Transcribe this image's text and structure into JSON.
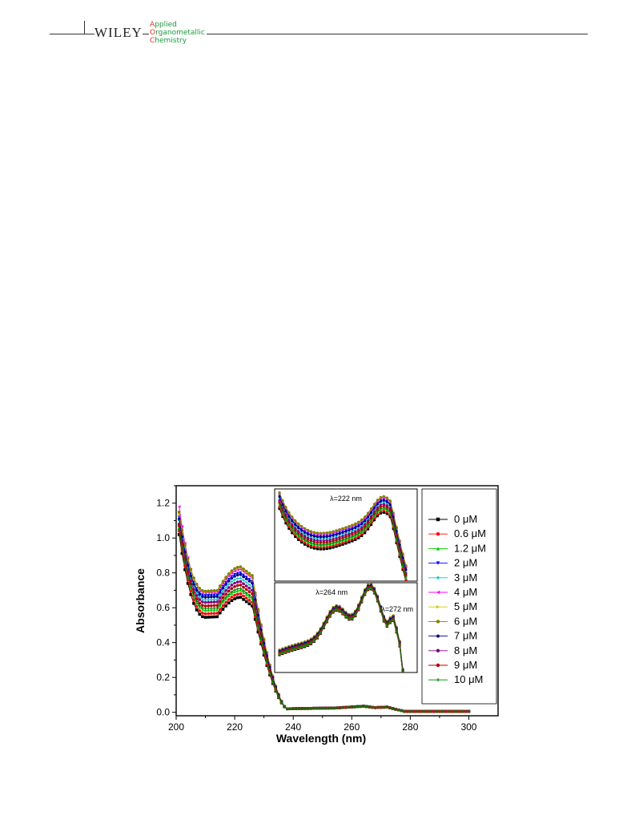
{
  "header": {
    "publisher": "WILEY",
    "journal_lines": [
      {
        "cap": "A",
        "rest": "pplied"
      },
      {
        "cap": "O",
        "rest": "rganometallic"
      },
      {
        "cap": "C",
        "rest": "hemistry"
      }
    ]
  },
  "colors": {
    "journal_green": "#1a9a3a",
    "journal_red": "#e03a2a"
  },
  "chart_data": {
    "type": "line",
    "title": "",
    "xlabel": "Wavelength (nm)",
    "ylabel": "Absorbance",
    "xlim": [
      200,
      310
    ],
    "ylim": [
      -0.02,
      1.3
    ],
    "xticks": [
      200,
      220,
      240,
      260,
      280,
      300
    ],
    "yticks": [
      0.0,
      0.2,
      0.4,
      0.6,
      0.8,
      1.0,
      1.2
    ],
    "x": [
      201,
      202,
      203,
      205,
      208,
      211,
      214,
      217,
      220,
      222,
      224,
      226,
      228,
      230,
      232,
      234,
      236,
      238,
      240,
      250,
      260,
      264,
      268,
      272,
      276,
      280,
      290,
      300
    ],
    "legend_position": "right",
    "series": [
      {
        "name": "0 μM",
        "color": "#000000",
        "marker": "square",
        "peak": 0.66,
        "trough": 0.545,
        "start": 1.02
      },
      {
        "name": "0.6 μM",
        "color": "#ff0000",
        "marker": "circle",
        "peak": 0.68,
        "trough": 0.565,
        "start": 1.04
      },
      {
        "name": "1.2 μM",
        "color": "#00cc00",
        "marker": "triangle-up",
        "peak": 0.7,
        "trough": 0.585,
        "start": 1.06
      },
      {
        "name": "2 μM",
        "color": "#0000ff",
        "marker": "triangle-down",
        "peak": 0.8,
        "trough": 0.67,
        "start": 1.12
      },
      {
        "name": "3 μM",
        "color": "#00cccc",
        "marker": "diamond",
        "peak": 0.77,
        "trough": 0.645,
        "start": 1.1
      },
      {
        "name": "4 μM",
        "color": "#ff00ff",
        "marker": "triangle-left",
        "peak": 0.82,
        "trough": 0.685,
        "start": 1.18
      },
      {
        "name": "5 μM",
        "color": "#cccc00",
        "marker": "triangle-right",
        "peak": 0.83,
        "trough": 0.69,
        "start": 1.14
      },
      {
        "name": "6 μM",
        "color": "#808000",
        "marker": "hexagon",
        "peak": 0.835,
        "trough": 0.695,
        "start": 1.15
      },
      {
        "name": "7 μM",
        "color": "#000080",
        "marker": "star",
        "peak": 0.79,
        "trough": 0.66,
        "start": 1.11
      },
      {
        "name": "8 μM",
        "color": "#800080",
        "marker": "pentagon",
        "peak": 0.75,
        "trough": 0.63,
        "start": 1.08
      },
      {
        "name": "9 μM",
        "color": "#b00000",
        "marker": "circle",
        "peak": 0.73,
        "trough": 0.61,
        "start": 1.07
      },
      {
        "name": "10 μM",
        "color": "#008000",
        "marker": "plus",
        "peak": 0.71,
        "trough": 0.595,
        "start": 1.05
      }
    ],
    "insets": [
      {
        "annotations": [
          "λ=222 nm"
        ]
      },
      {
        "annotations": [
          "λ=264 nm",
          "λ=272 nm"
        ]
      }
    ]
  }
}
